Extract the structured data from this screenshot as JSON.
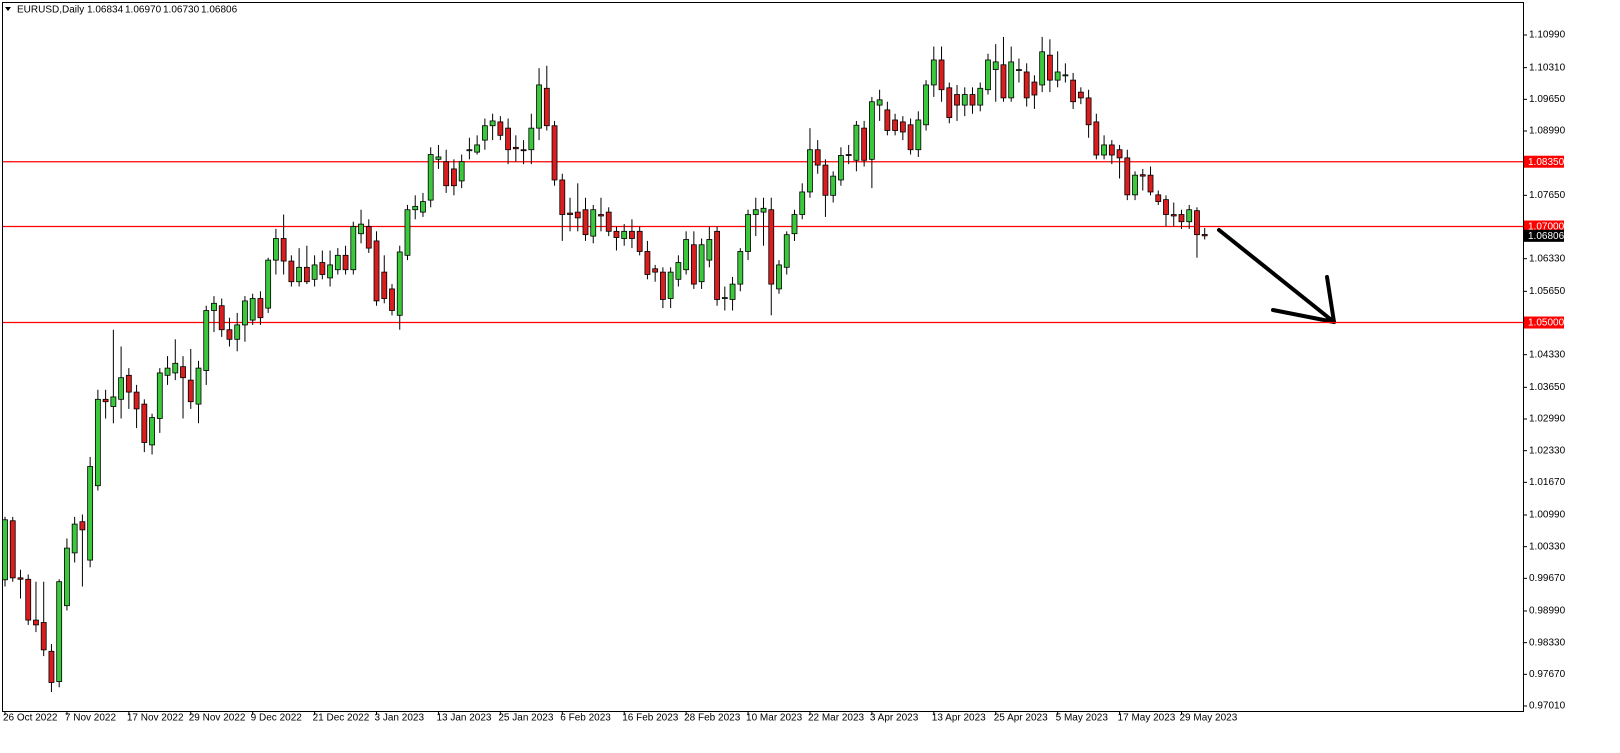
{
  "chart_data": {
    "type": "candlestick",
    "title": "EURUSD,Daily",
    "ohlc_labels": [
      "1.06834",
      "1.06970",
      "1.06730",
      "1.06806"
    ],
    "up_color": "#3cc83c",
    "down_color": "#d81e1e",
    "ylim": [
      0.96906,
      1.11657
    ],
    "yticks": [
      {
        "value": 1.1099,
        "label": "1.10990"
      },
      {
        "value": 1.1031,
        "label": "1.10310"
      },
      {
        "value": 1.0965,
        "label": "1.09650"
      },
      {
        "value": 1.0899,
        "label": "1.08990"
      },
      {
        "value": 1.0765,
        "label": "1.07650"
      },
      {
        "value": 1.0633,
        "label": "1.06330"
      },
      {
        "value": 1.0565,
        "label": "1.05650"
      },
      {
        "value": 1.0433,
        "label": "1.04330"
      },
      {
        "value": 1.0365,
        "label": "1.03650"
      },
      {
        "value": 1.0299,
        "label": "1.02990"
      },
      {
        "value": 1.0233,
        "label": "1.02330"
      },
      {
        "value": 1.0167,
        "label": "1.01670"
      },
      {
        "value": 1.0099,
        "label": "1.00990"
      },
      {
        "value": 1.0033,
        "label": "1.00330"
      },
      {
        "value": 0.9967,
        "label": "0.99670"
      },
      {
        "value": 0.9899,
        "label": "0.98990"
      },
      {
        "value": 0.9833,
        "label": "0.98330"
      },
      {
        "value": 0.9767,
        "label": "0.97670"
      },
      {
        "value": 0.9701,
        "label": "0.97010"
      }
    ],
    "levels": [
      {
        "value": 1.0835,
        "label": "1.08350"
      },
      {
        "value": 1.07,
        "label": "1.07000"
      },
      {
        "value": 1.05,
        "label": "1.05000"
      }
    ],
    "level_color": "#ff0000",
    "categories": [
      "26 Oct 2022",
      null,
      null,
      null,
      null,
      null,
      null,
      null,
      "7 Nov 2022",
      null,
      null,
      null,
      null,
      null,
      null,
      null,
      "17 Nov 2022",
      null,
      null,
      null,
      null,
      null,
      null,
      null,
      "29 Nov 2022",
      null,
      null,
      null,
      null,
      null,
      null,
      null,
      "9 Dec 2022",
      null,
      null,
      null,
      null,
      null,
      null,
      null,
      "21 Dec 2022",
      null,
      null,
      null,
      null,
      null,
      null,
      null,
      "3 Jan 2023",
      null,
      null,
      null,
      null,
      null,
      null,
      null,
      "13 Jan 2023",
      null,
      null,
      null,
      null,
      null,
      null,
      null,
      "25 Jan 2023",
      null,
      null,
      null,
      null,
      null,
      null,
      null,
      "6 Feb 2023",
      null,
      null,
      null,
      null,
      null,
      null,
      null,
      "16 Feb 2023",
      null,
      null,
      null,
      null,
      null,
      null,
      null,
      "28 Feb 2023",
      null,
      null,
      null,
      null,
      null,
      null,
      null,
      "10 Mar 2023",
      null,
      null,
      null,
      null,
      null,
      null,
      null,
      "22 Mar 2023",
      null,
      null,
      null,
      null,
      null,
      null,
      null,
      "3 Apr 2023",
      null,
      null,
      null,
      null,
      null,
      null,
      null,
      "13 Apr 2023",
      null,
      null,
      null,
      null,
      null,
      null,
      null,
      "25 Apr 2023",
      null,
      null,
      null,
      null,
      null,
      null,
      null,
      "5 May 2023",
      null,
      null,
      null,
      null,
      null,
      null,
      null,
      "17 May 2023",
      null,
      null,
      null,
      null,
      null,
      null,
      null,
      "29 May 2023",
      null,
      null,
      null
    ],
    "ohlc": [
      [
        0.9964,
        1.0095,
        0.995,
        1.0089
      ],
      [
        1.0087,
        1.0095,
        0.996,
        0.9968
      ],
      [
        0.9968,
        0.9985,
        0.9925,
        0.9965
      ],
      [
        0.9965,
        0.9975,
        0.987,
        0.988
      ],
      [
        0.988,
        0.996,
        0.9855,
        0.987
      ],
      [
        0.9875,
        0.996,
        0.9805,
        0.9818
      ],
      [
        0.9815,
        0.983,
        0.973,
        0.975
      ],
      [
        0.9752,
        0.9965,
        0.974,
        0.996
      ],
      [
        0.991,
        1.005,
        0.99,
        1.003
      ],
      [
        1.002,
        1.0095,
        1.0,
        1.008
      ],
      [
        1.0085,
        1.01,
        0.995,
        1.0068
      ],
      [
        1.0005,
        1.022,
        0.999,
        1.02
      ],
      [
        1.016,
        1.036,
        1.015,
        1.034
      ],
      [
        1.034,
        1.036,
        1.03,
        1.0335
      ],
      [
        1.0325,
        1.0485,
        1.029,
        1.0345
      ],
      [
        1.034,
        1.045,
        1.03,
        1.0385
      ],
      [
        1.039,
        1.0405,
        1.032,
        1.0355
      ],
      [
        1.0355,
        1.037,
        1.028,
        1.032
      ],
      [
        1.033,
        1.034,
        1.023,
        1.025
      ],
      [
        1.0245,
        1.031,
        1.0225,
        1.0302
      ],
      [
        1.03,
        1.0405,
        1.027,
        1.0395
      ],
      [
        1.039,
        1.043,
        1.037,
        1.0405
      ],
      [
        1.0395,
        1.0465,
        1.038,
        1.0415
      ],
      [
        1.0408,
        1.043,
        1.03,
        1.0385
      ],
      [
        1.038,
        1.0445,
        1.032,
        1.0335
      ],
      [
        1.033,
        1.042,
        1.029,
        1.0405
      ],
      [
        1.04,
        1.0535,
        1.037,
        1.0525
      ],
      [
        1.0525,
        1.0555,
        1.048,
        1.054
      ],
      [
        1.0535,
        1.055,
        1.047,
        1.0485
      ],
      [
        1.0485,
        1.051,
        1.045,
        1.0465
      ],
      [
        1.0465,
        1.052,
        1.044,
        1.0495
      ],
      [
        1.0495,
        1.0555,
        1.046,
        1.0545
      ],
      [
        1.0505,
        1.056,
        1.0495,
        1.055
      ],
      [
        1.055,
        1.0565,
        1.0495,
        1.051
      ],
      [
        1.053,
        1.0635,
        1.052,
        1.063
      ],
      [
        1.063,
        1.0695,
        1.06,
        1.0675
      ],
      [
        1.0675,
        1.0725,
        1.06,
        1.0628
      ],
      [
        1.0628,
        1.064,
        1.0575,
        1.0585
      ],
      [
        1.0585,
        1.0655,
        1.0575,
        1.0615
      ],
      [
        1.0615,
        1.066,
        1.058,
        1.0585
      ],
      [
        1.059,
        1.064,
        1.0575,
        1.062
      ],
      [
        1.0625,
        1.065,
        1.059,
        1.06
      ],
      [
        1.0593,
        1.065,
        1.0575,
        1.062
      ],
      [
        1.061,
        1.0655,
        1.06,
        1.064
      ],
      [
        1.064,
        1.066,
        1.06,
        1.061
      ],
      [
        1.061,
        1.071,
        1.06,
        1.07
      ],
      [
        1.0685,
        1.0735,
        1.0665,
        1.0705
      ],
      [
        1.07,
        1.0715,
        1.0645,
        1.0655
      ],
      [
        1.067,
        1.069,
        1.0535,
        1.0545
      ],
      [
        1.0605,
        1.064,
        1.054,
        1.055
      ],
      [
        1.057,
        1.058,
        1.0515,
        1.0525
      ],
      [
        1.0515,
        1.066,
        1.0485,
        1.0647
      ],
      [
        1.064,
        1.0745,
        1.063,
        1.0735
      ],
      [
        1.0735,
        1.0765,
        1.0715,
        1.0742
      ],
      [
        1.073,
        1.077,
        1.072,
        1.0752
      ],
      [
        1.0755,
        1.0865,
        1.074,
        1.085
      ],
      [
        1.084,
        1.087,
        1.082,
        1.0845
      ],
      [
        1.0835,
        1.086,
        1.077,
        1.0785
      ],
      [
        1.082,
        1.084,
        1.0765,
        1.0785
      ],
      [
        1.0795,
        1.085,
        1.078,
        1.0835
      ],
      [
        1.086,
        1.0885,
        1.084,
        1.086
      ],
      [
        1.0855,
        1.089,
        1.085,
        1.087
      ],
      [
        1.088,
        1.0925,
        1.086,
        1.091
      ],
      [
        1.091,
        1.0935,
        1.088,
        1.092
      ],
      [
        1.0918,
        1.093,
        1.088,
        1.089
      ],
      [
        1.0905,
        1.0925,
        1.083,
        1.086
      ],
      [
        1.0865,
        1.089,
        1.0835,
        1.0862
      ],
      [
        1.086,
        1.088,
        1.083,
        1.0858
      ],
      [
        1.086,
        1.0935,
        1.083,
        1.0905
      ],
      [
        1.0905,
        1.103,
        1.088,
        1.0995
      ],
      [
        1.0988,
        1.1035,
        1.09,
        1.091
      ],
      [
        1.091,
        1.092,
        1.0785,
        1.0797
      ],
      [
        1.0797,
        1.081,
        1.067,
        1.0725
      ],
      [
        1.0728,
        1.076,
        1.069,
        1.0725
      ],
      [
        1.073,
        1.079,
        1.069,
        1.0718
      ],
      [
        1.0735,
        1.076,
        1.067,
        1.0683
      ],
      [
        1.068,
        1.0745,
        1.0665,
        1.0735
      ],
      [
        1.0725,
        1.076,
        1.069,
        1.0722
      ],
      [
        1.073,
        1.074,
        1.068,
        1.069
      ],
      [
        1.069,
        1.07,
        1.065,
        1.0677
      ],
      [
        1.0675,
        1.0705,
        1.066,
        1.069
      ],
      [
        1.069,
        1.0715,
        1.0655,
        1.0675
      ],
      [
        1.069,
        1.07,
        1.064,
        1.0648
      ],
      [
        1.0648,
        1.067,
        1.059,
        1.06
      ],
      [
        1.0612,
        1.062,
        1.0585,
        1.0605
      ],
      [
        1.0605,
        1.0615,
        1.053,
        1.0548
      ],
      [
        1.055,
        1.0615,
        1.053,
        1.0605
      ],
      [
        1.059,
        1.064,
        1.0575,
        1.0625
      ],
      [
        1.061,
        1.069,
        1.06,
        1.0673
      ],
      [
        1.0662,
        1.069,
        1.057,
        1.058
      ],
      [
        1.0585,
        1.0675,
        1.057,
        1.0662
      ],
      [
        1.063,
        1.07,
        1.0615,
        1.0673
      ],
      [
        1.069,
        1.07,
        1.0535,
        1.0548
      ],
      [
        1.055,
        1.0575,
        1.0525,
        1.0552
      ],
      [
        1.0548,
        1.0595,
        1.0525,
        1.058
      ],
      [
        1.058,
        1.0655,
        1.0565,
        1.0648
      ],
      [
        1.0648,
        1.0735,
        1.063,
        1.0725
      ],
      [
        1.0725,
        1.076,
        1.068,
        1.0735
      ],
      [
        1.073,
        1.076,
        1.066,
        1.0738
      ],
      [
        1.0735,
        1.076,
        1.0515,
        1.058
      ],
      [
        1.057,
        1.063,
        1.056,
        1.062
      ],
      [
        1.0615,
        1.069,
        1.06,
        1.0683
      ],
      [
        1.0685,
        1.0735,
        1.067,
        1.0725
      ],
      [
        1.0725,
        1.079,
        1.0715,
        1.0772
      ],
      [
        1.0772,
        1.0905,
        1.076,
        1.086
      ],
      [
        1.086,
        1.088,
        1.081,
        1.0828
      ],
      [
        1.0828,
        1.084,
        1.072,
        1.0765
      ],
      [
        1.0765,
        1.0815,
        1.075,
        1.0805
      ],
      [
        1.0797,
        1.0865,
        1.0785,
        1.0848
      ],
      [
        1.085,
        1.087,
        1.083,
        1.0848
      ],
      [
        1.0838,
        1.092,
        1.0815,
        1.0911
      ],
      [
        1.0905,
        1.092,
        1.0825,
        1.0838
      ],
      [
        1.084,
        1.097,
        1.078,
        1.096
      ],
      [
        1.0953,
        1.0985,
        1.092,
        1.0964
      ],
      [
        1.0943,
        1.096,
        1.089,
        1.09
      ],
      [
        1.0922,
        1.0935,
        1.089,
        1.09
      ],
      [
        1.0918,
        1.093,
        1.088,
        1.0897
      ],
      [
        1.0912,
        1.0925,
        1.085,
        1.086
      ],
      [
        1.086,
        1.094,
        1.0845,
        1.0922
      ],
      [
        1.0912,
        1.1005,
        1.09,
        1.0995
      ],
      [
        1.0995,
        1.1075,
        1.097,
        1.1047
      ],
      [
        1.1047,
        1.1075,
        1.096,
        1.0985
      ],
      [
        1.0989,
        1.1,
        1.0915,
        1.0927
      ],
      [
        1.0975,
        1.0995,
        1.092,
        1.0953
      ],
      [
        1.0953,
        1.099,
        1.093,
        1.0975
      ],
      [
        1.0975,
        1.099,
        1.0935,
        1.0953
      ],
      [
        1.0953,
        1.1,
        1.094,
        1.0988
      ],
      [
        1.0985,
        1.106,
        1.0975,
        1.1047
      ],
      [
        1.1027,
        1.108,
        1.096,
        1.1043
      ],
      [
        1.1037,
        1.1095,
        1.096,
        1.0968
      ],
      [
        1.0968,
        1.1075,
        1.096,
        1.1043
      ],
      [
        1.1027,
        1.105,
        1.1,
        1.1027
      ],
      [
        1.1022,
        1.104,
        1.095,
        1.0968
      ],
      [
        1.1001,
        1.1015,
        1.0945,
        1.0974
      ],
      [
        1.0995,
        1.1095,
        1.098,
        1.1064
      ],
      [
        1.1057,
        1.109,
        1.098,
        1.1005
      ],
      [
        1.1005,
        1.1065,
        1.099,
        1.1022
      ],
      [
        1.1016,
        1.104,
        1.1,
        1.1016
      ],
      [
        1.1005,
        1.102,
        1.0945,
        1.096
      ],
      [
        1.098,
        1.099,
        1.0955,
        1.0968
      ],
      [
        1.0968,
        1.0985,
        1.0885,
        1.0912
      ],
      [
        1.0918,
        1.0935,
        1.084,
        1.0849
      ],
      [
        1.0849,
        1.089,
        1.084,
        1.087
      ],
      [
        1.087,
        1.088,
        1.083,
        1.0849
      ],
      [
        1.086,
        1.087,
        1.08,
        1.0843
      ],
      [
        1.0843,
        1.086,
        1.0755,
        1.0766
      ],
      [
        1.0766,
        1.0815,
        1.0755,
        1.0807
      ],
      [
        1.0808,
        1.082,
        1.0775,
        1.0805
      ],
      [
        1.0807,
        1.0825,
        1.0765,
        1.0772
      ],
      [
        1.0766,
        1.0775,
        1.0745,
        1.0752
      ],
      [
        1.0756,
        1.0765,
        1.07,
        1.0725
      ],
      [
        1.0725,
        1.075,
        1.07,
        1.0722
      ],
      [
        1.0725,
        1.0735,
        1.0695,
        1.071
      ],
      [
        1.071,
        1.0745,
        1.0695,
        1.0735
      ],
      [
        1.0733,
        1.074,
        1.0635,
        1.0683
      ],
      [
        1.06834,
        1.0697,
        1.0673,
        1.06806
      ]
    ]
  }
}
